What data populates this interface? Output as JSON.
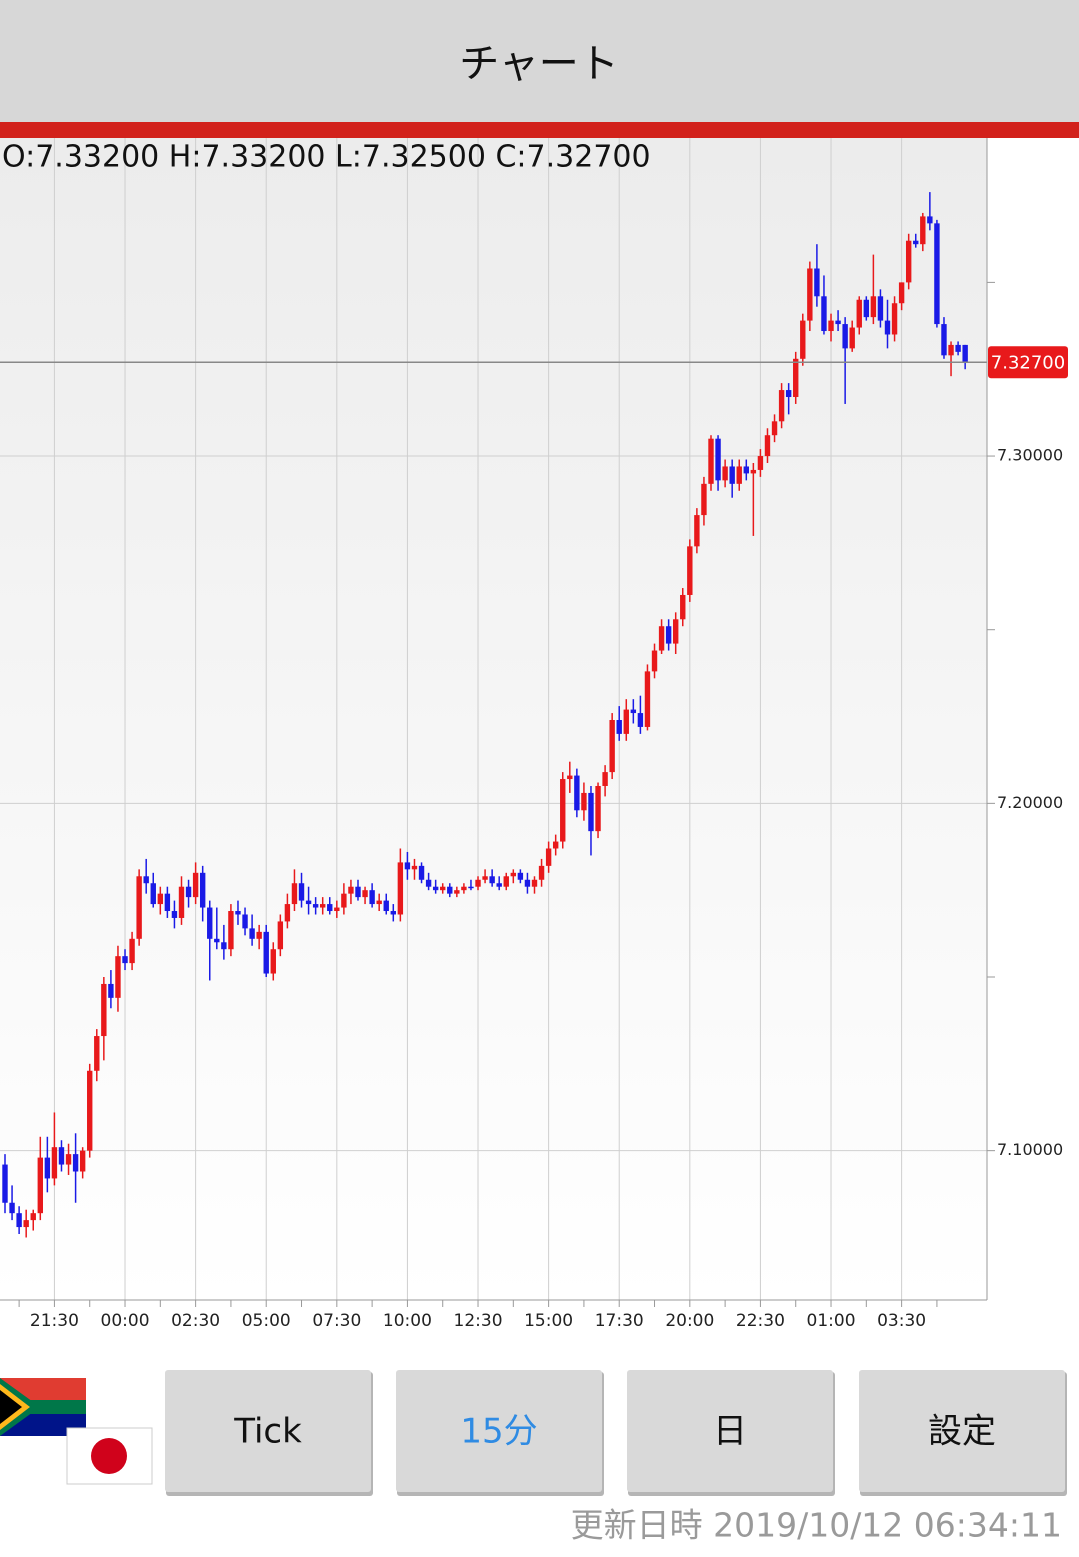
{
  "header": {
    "title": "チャート",
    "ohlc": "O:7.33200 H:7.33200 L:7.32500 C:7.32700"
  },
  "chart_data": {
    "type": "candlestick",
    "categories": [
      null,
      null,
      null,
      null,
      null,
      null,
      null,
      "21:30",
      null,
      null,
      null,
      null,
      null,
      null,
      null,
      null,
      null,
      "00:00",
      null,
      null,
      null,
      null,
      null,
      null,
      null,
      null,
      null,
      "02:30",
      null,
      null,
      null,
      null,
      null,
      null,
      null,
      null,
      null,
      "05:00",
      null,
      null,
      null,
      null,
      null,
      null,
      null,
      null,
      null,
      "07:30",
      null,
      null,
      null,
      null,
      null,
      null,
      null,
      null,
      null,
      "10:00",
      null,
      null,
      null,
      null,
      null,
      null,
      null,
      null,
      null,
      "12:30",
      null,
      null,
      null,
      null,
      null,
      null,
      null,
      null,
      null,
      "15:00",
      null,
      null,
      null,
      null,
      null,
      null,
      null,
      null,
      null,
      "17:30",
      null,
      null,
      null,
      null,
      null,
      null,
      null,
      null,
      null,
      "20:00",
      null,
      null,
      null,
      null,
      null,
      null,
      null,
      null,
      null,
      "22:30",
      null,
      null,
      null,
      null,
      null,
      null,
      null,
      null,
      null,
      "01:00",
      null,
      null,
      null,
      null,
      null,
      null,
      null,
      null,
      null,
      "03:30",
      null,
      null,
      null,
      null,
      null,
      null,
      null,
      null,
      null
    ],
    "open": [
      7.096,
      7.085,
      7.082,
      7.078,
      7.08,
      7.082,
      7.098,
      7.092,
      7.101,
      7.096,
      7.099,
      7.094,
      7.1,
      7.123,
      7.133,
      7.148,
      7.144,
      7.156,
      7.154,
      7.161,
      7.179,
      7.177,
      7.171,
      7.174,
      7.169,
      7.167,
      7.176,
      7.173,
      7.18,
      7.17,
      7.161,
      7.16,
      7.158,
      7.169,
      7.168,
      7.164,
      7.161,
      7.163,
      7.151,
      7.158,
      7.166,
      7.171,
      7.177,
      7.172,
      7.171,
      7.17,
      7.171,
      7.169,
      7.17,
      7.174,
      7.176,
      7.173,
      7.175,
      7.171,
      7.172,
      7.169,
      7.168,
      7.183,
      7.181,
      7.182,
      7.178,
      7.176,
      7.175,
      7.176,
      7.174,
      7.175,
      7.176,
      7.176,
      7.178,
      7.179,
      7.177,
      7.176,
      7.179,
      7.18,
      7.178,
      7.176,
      7.178,
      7.182,
      7.187,
      7.189,
      7.207,
      7.208,
      7.198,
      7.203,
      7.192,
      7.205,
      7.209,
      7.224,
      7.22,
      7.227,
      7.226,
      7.222,
      7.238,
      7.244,
      7.251,
      7.246,
      7.253,
      7.26,
      7.274,
      7.283,
      7.292,
      7.305,
      7.293,
      7.297,
      7.292,
      7.297,
      7.295,
      7.296,
      7.3,
      7.306,
      7.31,
      7.319,
      7.317,
      7.328,
      7.339,
      7.354,
      7.346,
      7.336,
      7.339,
      7.338,
      7.331,
      7.337,
      7.345,
      7.34,
      7.346,
      7.339,
      7.335,
      7.344,
      7.35,
      7.362,
      7.361,
      7.369,
      7.367,
      7.338,
      7.329,
      7.332,
      7.332
    ],
    "high": [
      7.099,
      7.09,
      7.084,
      7.083,
      7.083,
      7.104,
      7.104,
      7.111,
      7.103,
      7.102,
      7.105,
      7.101,
      7.125,
      7.135,
      7.15,
      7.152,
      7.159,
      7.158,
      7.163,
      7.181,
      7.184,
      7.18,
      7.176,
      7.176,
      7.172,
      7.179,
      7.178,
      7.183,
      7.182,
      7.172,
      7.17,
      7.165,
      7.171,
      7.172,
      7.17,
      7.168,
      7.165,
      7.165,
      7.16,
      7.168,
      7.174,
      7.181,
      7.18,
      7.176,
      7.173,
      7.173,
      7.173,
      7.172,
      7.177,
      7.178,
      7.178,
      7.176,
      7.177,
      7.174,
      7.174,
      7.171,
      7.187,
      7.186,
      7.184,
      7.183,
      7.18,
      7.178,
      7.177,
      7.177,
      7.176,
      7.177,
      7.178,
      7.179,
      7.181,
      7.181,
      7.179,
      7.18,
      7.181,
      7.181,
      7.18,
      7.179,
      7.184,
      7.189,
      7.191,
      7.209,
      7.212,
      7.21,
      7.206,
      7.205,
      7.206,
      7.211,
      7.226,
      7.228,
      7.23,
      7.23,
      7.231,
      7.24,
      7.246,
      7.253,
      7.253,
      7.255,
      7.262,
      7.276,
      7.285,
      7.294,
      7.306,
      7.306,
      7.299,
      7.299,
      7.299,
      7.299,
      7.298,
      7.302,
      7.308,
      7.312,
      7.321,
      7.321,
      7.33,
      7.341,
      7.356,
      7.361,
      7.352,
      7.341,
      7.342,
      7.34,
      7.339,
      7.346,
      7.346,
      7.358,
      7.348,
      7.345,
      7.346,
      7.35,
      7.364,
      7.364,
      7.37,
      7.376,
      7.368,
      7.34,
      7.333,
      7.333,
      7.332
    ],
    "low": [
      7.082,
      7.08,
      7.076,
      7.075,
      7.077,
      7.08,
      7.088,
      7.09,
      7.094,
      7.093,
      7.085,
      7.092,
      7.098,
      7.12,
      7.126,
      7.141,
      7.14,
      7.152,
      7.152,
      7.159,
      7.174,
      7.17,
      7.168,
      7.167,
      7.164,
      7.165,
      7.17,
      7.171,
      7.166,
      7.149,
      7.158,
      7.155,
      7.156,
      7.165,
      7.162,
      7.159,
      7.158,
      7.15,
      7.149,
      7.156,
      7.164,
      7.169,
      7.17,
      7.168,
      7.168,
      7.168,
      7.168,
      7.167,
      7.168,
      7.171,
      7.172,
      7.171,
      7.17,
      7.169,
      7.168,
      7.166,
      7.166,
      7.178,
      7.178,
      7.177,
      7.175,
      7.174,
      7.174,
      7.173,
      7.173,
      7.174,
      7.175,
      7.175,
      7.177,
      7.176,
      7.175,
      7.175,
      7.177,
      7.177,
      7.174,
      7.174,
      7.176,
      7.18,
      7.185,
      7.187,
      7.203,
      7.196,
      7.195,
      7.185,
      7.19,
      7.202,
      7.207,
      7.218,
      7.218,
      7.223,
      7.22,
      7.221,
      7.236,
      7.243,
      7.244,
      7.243,
      7.251,
      7.258,
      7.272,
      7.28,
      7.29,
      7.29,
      7.291,
      7.288,
      7.29,
      7.293,
      7.277,
      7.294,
      7.298,
      7.304,
      7.308,
      7.312,
      7.315,
      7.326,
      7.336,
      7.343,
      7.335,
      7.333,
      7.336,
      7.315,
      7.33,
      7.335,
      7.339,
      7.338,
      7.337,
      7.331,
      7.333,
      7.342,
      7.348,
      7.36,
      7.359,
      7.365,
      7.337,
      7.328,
      7.323,
      7.329,
      7.325
    ],
    "close": [
      7.085,
      7.082,
      7.078,
      7.08,
      7.082,
      7.098,
      7.092,
      7.101,
      7.096,
      7.099,
      7.094,
      7.1,
      7.123,
      7.133,
      7.148,
      7.144,
      7.156,
      7.154,
      7.161,
      7.179,
      7.177,
      7.171,
      7.174,
      7.169,
      7.167,
      7.176,
      7.173,
      7.18,
      7.17,
      7.161,
      7.16,
      7.158,
      7.169,
      7.168,
      7.164,
      7.161,
      7.163,
      7.151,
      7.158,
      7.166,
      7.171,
      7.177,
      7.172,
      7.171,
      7.17,
      7.171,
      7.169,
      7.17,
      7.174,
      7.176,
      7.173,
      7.175,
      7.171,
      7.172,
      7.169,
      7.168,
      7.183,
      7.181,
      7.182,
      7.178,
      7.176,
      7.175,
      7.176,
      7.174,
      7.175,
      7.176,
      7.176,
      7.178,
      7.179,
      7.177,
      7.176,
      7.179,
      7.18,
      7.178,
      7.176,
      7.178,
      7.182,
      7.187,
      7.189,
      7.207,
      7.208,
      7.198,
      7.203,
      7.192,
      7.205,
      7.209,
      7.224,
      7.22,
      7.227,
      7.226,
      7.222,
      7.238,
      7.244,
      7.251,
      7.246,
      7.253,
      7.26,
      7.274,
      7.283,
      7.292,
      7.305,
      7.293,
      7.297,
      7.292,
      7.297,
      7.295,
      7.296,
      7.3,
      7.306,
      7.31,
      7.319,
      7.317,
      7.328,
      7.339,
      7.354,
      7.346,
      7.336,
      7.339,
      7.338,
      7.331,
      7.337,
      7.345,
      7.34,
      7.346,
      7.339,
      7.335,
      7.344,
      7.35,
      7.362,
      7.361,
      7.369,
      7.367,
      7.338,
      7.329,
      7.332,
      7.33,
      7.327
    ],
    "up_color": "#e8191b",
    "down_color": "#1a1ae6",
    "ylim": [
      7.057,
      7.391
    ],
    "yticks": [
      {
        "value": 7.1,
        "label": "7.10000"
      },
      {
        "value": 7.2,
        "label": "7.20000"
      },
      {
        "value": 7.3,
        "label": "7.30000"
      }
    ],
    "yticks_minor": [
      7.15,
      7.25,
      7.35
    ],
    "last_price": {
      "value": 7.327,
      "label": "7.32700"
    },
    "grid": true
  },
  "buttons": [
    "Tick",
    "15分",
    "日",
    "設定"
  ],
  "footer": {
    "updated": "更新日時 2019/10/12 06:34:11"
  }
}
